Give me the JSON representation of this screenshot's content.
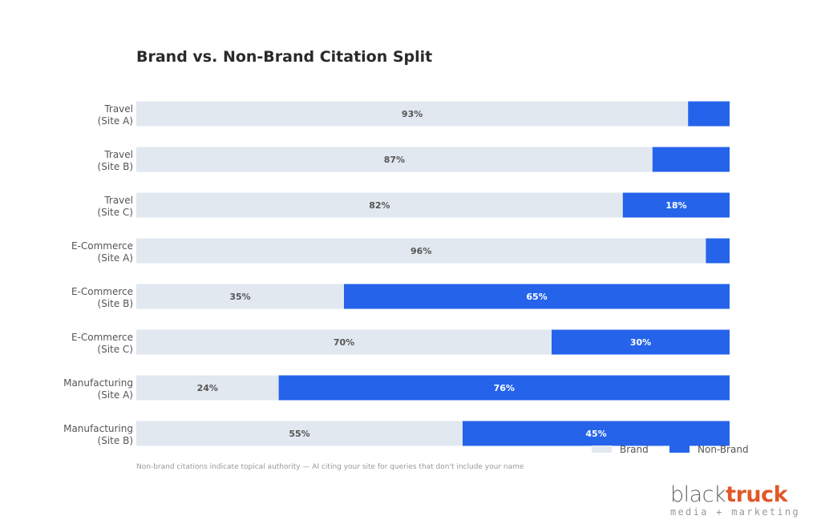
{
  "chart_data": {
    "type": "bar",
    "orientation": "horizontal",
    "stacked": true,
    "title": "Brand vs. Non-Brand Citation Split",
    "categories": [
      [
        "Travel",
        "(Site A)"
      ],
      [
        "Travel",
        "(Site B)"
      ],
      [
        "Travel",
        "(Site C)"
      ],
      [
        "E-Commerce",
        "(Site A)"
      ],
      [
        "E-Commerce",
        "(Site B)"
      ],
      [
        "E-Commerce",
        "(Site C)"
      ],
      [
        "Manufacturing",
        "(Site A)"
      ],
      [
        "Manufacturing",
        "(Site B)"
      ]
    ],
    "series": [
      {
        "name": "Brand",
        "color": "#e2e8f0",
        "values": [
          93,
          87,
          82,
          96,
          35,
          70,
          24,
          55
        ],
        "labels": [
          "93%",
          "87%",
          "82%",
          "96%",
          "35%",
          "70%",
          "24%",
          "55%"
        ]
      },
      {
        "name": "Non-Brand",
        "color": "#2563eb",
        "values": [
          7,
          13,
          18,
          4,
          65,
          30,
          76,
          45
        ],
        "labels": [
          "",
          "",
          "18%",
          "",
          "65%",
          "30%",
          "76%",
          "45%"
        ]
      }
    ],
    "xlim": [
      0,
      100
    ],
    "grid": false,
    "legend": "bottom-right",
    "annotation": "Non-brand citations indicate topical authority — AI citing your site for queries that don't include your name"
  },
  "logo": {
    "part1": "black",
    "part2": "truck",
    "tagline": "media + marketing"
  }
}
